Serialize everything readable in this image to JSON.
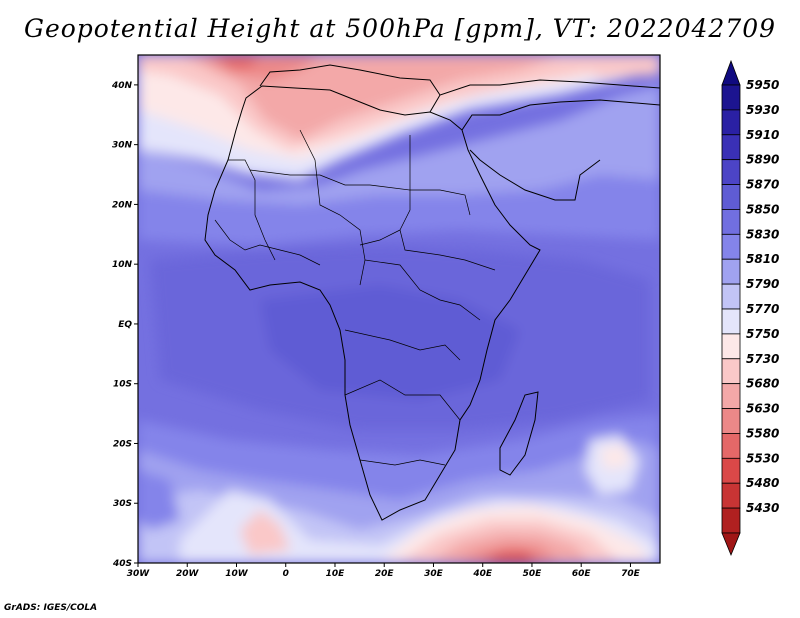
{
  "title": "Geopotential Height at 500hPa [gpm], VT: 2022042709",
  "footer": "GrADS: IGES/COLA",
  "map": {
    "region": "Africa",
    "lon_range": [
      -30,
      76
    ],
    "lat_range": [
      -40,
      45
    ],
    "lon_ticks": [
      {
        "lon": -30,
        "label": "30W"
      },
      {
        "lon": -20,
        "label": "20W"
      },
      {
        "lon": -10,
        "label": "10W"
      },
      {
        "lon": 0,
        "label": "0"
      },
      {
        "lon": 10,
        "label": "10E"
      },
      {
        "lon": 20,
        "label": "20E"
      },
      {
        "lon": 30,
        "label": "30E"
      },
      {
        "lon": 40,
        "label": "40E"
      },
      {
        "lon": 50,
        "label": "50E"
      },
      {
        "lon": 60,
        "label": "60E"
      },
      {
        "lon": 70,
        "label": "70E"
      }
    ],
    "lat_ticks": [
      {
        "lat": 40,
        "label": "40N"
      },
      {
        "lat": 30,
        "label": "30N"
      },
      {
        "lat": 20,
        "label": "20N"
      },
      {
        "lat": 10,
        "label": "10N"
      },
      {
        "lat": 0,
        "label": "EQ"
      },
      {
        "lat": -10,
        "label": "10S"
      },
      {
        "lat": -20,
        "label": "20S"
      },
      {
        "lat": -30,
        "label": "30S"
      },
      {
        "lat": -40,
        "label": "40S"
      }
    ]
  },
  "colorbar": {
    "levels": [
      {
        "value": "5950",
        "color": "#1c1490"
      },
      {
        "value": "5930",
        "color": "#2a20a4"
      },
      {
        "value": "5910",
        "color": "#3a30b6"
      },
      {
        "value": "5890",
        "color": "#4c44c6"
      },
      {
        "value": "5870",
        "color": "#5f5cd4"
      },
      {
        "value": "5850",
        "color": "#716fe0"
      },
      {
        "value": "5830",
        "color": "#8484ea"
      },
      {
        "value": "5810",
        "color": "#a0a2f0"
      },
      {
        "value": "5790",
        "color": "#c2c4f6"
      },
      {
        "value": "5770",
        "color": "#e4e5fb"
      },
      {
        "value": "5750",
        "color": "#fde8e8"
      },
      {
        "value": "5730",
        "color": "#fac8c8"
      },
      {
        "value": "5680",
        "color": "#f3a8a8"
      },
      {
        "value": "5630",
        "color": "#ec8888"
      },
      {
        "value": "5580",
        "color": "#e46868"
      },
      {
        "value": "5530",
        "color": "#da4848"
      },
      {
        "value": "5480",
        "color": "#c83434"
      },
      {
        "value": "5430",
        "color": "#b02020"
      }
    ],
    "top_arrow_color": "#100a80",
    "bottom_arrow_color": "#a01616"
  }
}
